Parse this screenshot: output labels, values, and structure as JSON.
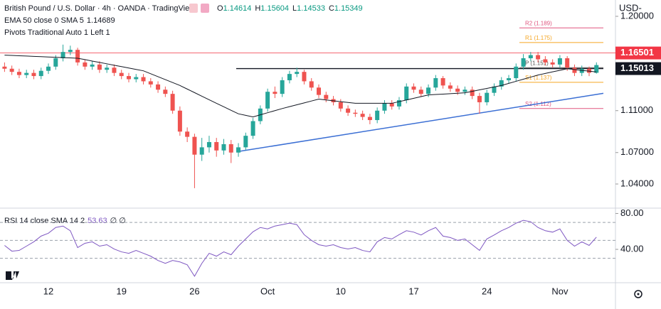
{
  "chart_data": {
    "type": "candlestick",
    "title": "British Pound / U.S. Dollar · 4h · OANDA · TradingView",
    "ohlc_prefixes": [
      "O",
      "H",
      "L",
      "C"
    ],
    "currency": "USD-",
    "categories": [
      null,
      null,
      null,
      null,
      null,
      null,
      "12",
      null,
      null,
      null,
      null,
      null,
      null,
      null,
      null,
      null,
      "19",
      null,
      null,
      null,
      null,
      null,
      null,
      null,
      null,
      null,
      "26",
      null,
      null,
      null,
      null,
      null,
      null,
      null,
      null,
      null,
      "Oct",
      null,
      null,
      null,
      null,
      null,
      null,
      null,
      null,
      null,
      "10",
      null,
      null,
      null,
      null,
      null,
      null,
      null,
      null,
      null,
      "17",
      null,
      null,
      null,
      null,
      null,
      null,
      null,
      null,
      null,
      "24",
      null,
      null,
      null,
      null,
      null,
      null,
      null,
      null,
      null,
      "Nov",
      null,
      null,
      null,
      null,
      null
    ],
    "candles": {
      "up_color": "#26a69a",
      "down_color": "#ef5350",
      "open": [
        1.152,
        1.15,
        1.147,
        1.144,
        1.146,
        1.143,
        1.148,
        1.152,
        1.16,
        1.166,
        1.168,
        1.156,
        1.152,
        1.154,
        1.149,
        1.151,
        1.146,
        1.143,
        1.14,
        1.142,
        1.138,
        1.135,
        1.13,
        1.126,
        1.11,
        1.09,
        1.085,
        1.068,
        1.075,
        1.08,
        1.072,
        1.078,
        1.07,
        1.075,
        1.086,
        1.1,
        1.112,
        1.128,
        1.126,
        1.139,
        1.145,
        1.147,
        1.138,
        1.132,
        1.125,
        1.121,
        1.118,
        1.112,
        1.108,
        1.107,
        1.104,
        1.101,
        1.11,
        1.117,
        1.114,
        1.12,
        1.133,
        1.13,
        1.126,
        1.132,
        1.141,
        1.134,
        1.131,
        1.128,
        1.13,
        1.124,
        1.118,
        1.127,
        1.133,
        1.139,
        1.141,
        1.152,
        1.16,
        1.163,
        1.159,
        1.156,
        1.154,
        1.16,
        1.151,
        1.146,
        1.15,
        1.14614
      ],
      "high": [
        1.156,
        1.153,
        1.15,
        1.149,
        1.149,
        1.151,
        1.155,
        1.163,
        1.173,
        1.172,
        1.17,
        1.159,
        1.157,
        1.157,
        1.154,
        1.154,
        1.149,
        1.146,
        1.145,
        1.145,
        1.141,
        1.138,
        1.133,
        1.129,
        1.114,
        1.094,
        1.088,
        1.084,
        1.086,
        1.084,
        1.083,
        1.082,
        1.079,
        1.089,
        1.103,
        1.115,
        1.131,
        1.133,
        1.142,
        1.148,
        1.151,
        1.149,
        1.141,
        1.135,
        1.128,
        1.124,
        1.121,
        1.115,
        1.111,
        1.11,
        1.107,
        1.113,
        1.12,
        1.12,
        1.123,
        1.136,
        1.136,
        1.133,
        1.135,
        1.144,
        1.143,
        1.137,
        1.134,
        1.133,
        1.133,
        1.127,
        1.13,
        1.136,
        1.142,
        1.144,
        1.155,
        1.164,
        1.166,
        1.166,
        1.162,
        1.159,
        1.163,
        1.162,
        1.154,
        1.153,
        1.152,
        1.15604
      ],
      "low": [
        1.147,
        1.144,
        1.141,
        1.141,
        1.14,
        1.14,
        1.145,
        1.149,
        1.157,
        1.163,
        1.153,
        1.149,
        1.149,
        1.146,
        1.146,
        1.143,
        1.14,
        1.137,
        1.137,
        1.135,
        1.132,
        1.127,
        1.123,
        1.107,
        1.086,
        1.08,
        1.036,
        1.062,
        1.07,
        1.066,
        1.068,
        1.06,
        1.066,
        1.072,
        1.083,
        1.097,
        1.109,
        1.122,
        1.123,
        1.136,
        1.142,
        1.135,
        1.129,
        1.122,
        1.118,
        1.115,
        1.109,
        1.105,
        1.104,
        1.101,
        1.097,
        1.098,
        1.107,
        1.111,
        1.111,
        1.117,
        1.127,
        1.123,
        1.123,
        1.129,
        1.131,
        1.128,
        1.125,
        1.125,
        1.121,
        1.107,
        1.115,
        1.124,
        1.13,
        1.136,
        1.138,
        1.149,
        1.157,
        1.156,
        1.153,
        1.151,
        1.151,
        1.148,
        1.143,
        1.143,
        1.143,
        1.14533
      ],
      "close": [
        1.15,
        1.147,
        1.144,
        1.146,
        1.143,
        1.148,
        1.152,
        1.16,
        1.166,
        1.168,
        1.156,
        1.152,
        1.154,
        1.149,
        1.151,
        1.146,
        1.143,
        1.14,
        1.142,
        1.138,
        1.135,
        1.13,
        1.126,
        1.11,
        1.09,
        1.085,
        1.068,
        1.075,
        1.08,
        1.072,
        1.078,
        1.07,
        1.075,
        1.086,
        1.1,
        1.112,
        1.128,
        1.126,
        1.139,
        1.145,
        1.147,
        1.138,
        1.132,
        1.125,
        1.121,
        1.118,
        1.112,
        1.108,
        1.107,
        1.104,
        1.101,
        1.11,
        1.117,
        1.114,
        1.12,
        1.133,
        1.13,
        1.126,
        1.132,
        1.141,
        1.134,
        1.131,
        1.128,
        1.13,
        1.124,
        1.118,
        1.127,
        1.133,
        1.139,
        1.141,
        1.152,
        1.16,
        1.163,
        1.159,
        1.156,
        1.154,
        1.16,
        1.151,
        1.146,
        1.15,
        1.14614,
        1.15349
      ]
    },
    "ema": {
      "name": "EMA 50 close 0 SMA 5",
      "color": "#131722",
      "values": [
        1.163,
        1.1627,
        1.1624,
        1.1621,
        1.1618,
        1.1615,
        1.1612,
        1.1609,
        1.1606,
        1.1603,
        1.16,
        1.1587,
        1.1573,
        1.156,
        1.1547,
        1.1533,
        1.152,
        1.1507,
        1.1493,
        1.148,
        1.1452,
        1.1424,
        1.1396,
        1.1368,
        1.134,
        1.1306,
        1.1272,
        1.1238,
        1.1204,
        1.117,
        1.1137,
        1.1103,
        1.107,
        1.1055,
        1.104,
        1.106,
        1.108,
        1.11,
        1.112,
        1.1138,
        1.1156,
        1.1174,
        1.1192,
        1.121,
        1.1202,
        1.1194,
        1.1186,
        1.1178,
        1.117,
        1.117,
        1.117,
        1.117,
        1.117,
        1.117,
        1.1186,
        1.1202,
        1.1218,
        1.1234,
        1.125,
        1.1254,
        1.1258,
        1.1262,
        1.1266,
        1.127,
        1.1284,
        1.1298,
        1.1312,
        1.1326,
        1.134,
        1.136,
        1.138,
        1.14,
        1.142,
        1.144,
        1.1455,
        1.147,
        1.1485,
        1.15,
        1.1492,
        1.1484,
        1.1477,
        1.14689
      ]
    },
    "pivots_title": "Pivots Traditional Auto 1 Left 1",
    "pivots": [
      {
        "label": "R2 (1.189)",
        "value": 1.189,
        "color": "#e0557f"
      },
      {
        "label": "R1 (1.175)",
        "value": 1.175,
        "color": "#f5a623"
      },
      {
        "label": "P (1.151)",
        "value": 1.151,
        "color": "#555555"
      },
      {
        "label": "S1 (1.137)",
        "value": 1.137,
        "color": "#f5a623"
      },
      {
        "label": "S2 (1.112)",
        "value": 1.112,
        "color": "#e0557f"
      }
    ],
    "levels": [
      {
        "value": 1.16501,
        "color": "#f23645"
      },
      {
        "value": 1.15013,
        "color": "#131722"
      }
    ],
    "trendline": {
      "values": [
        1.071,
        1.1265
      ],
      "color": "#3b6fd4"
    },
    "ylim": [
      1.019,
      1.2088
    ],
    "yticks": [
      {
        "value": 1.04,
        "label": "1.04000"
      },
      {
        "value": 1.07,
        "label": "1.07000"
      },
      {
        "value": 1.11,
        "label": "1.11000"
      },
      {
        "value": 1.2,
        "label": "1.20000"
      }
    ],
    "rsi": {
      "name": "RSI 14 close SMA 14 2",
      "suffix": "∅ ∅",
      "color": "#7e57c2",
      "values": [
        44.4,
        38,
        38.8,
        43.6,
        48.4,
        54.8,
        58,
        64.4,
        66,
        60.8,
        42,
        46.8,
        48.4,
        43.6,
        45.2,
        40.4,
        37.2,
        35.6,
        38.8,
        35.6,
        32.4,
        27.6,
        24.4,
        27.6,
        26,
        22.8,
        10,
        24.4,
        35.6,
        32.4,
        37.2,
        34,
        43.6,
        51.6,
        59.6,
        64.4,
        62.8,
        66,
        67.6,
        69.2,
        67.6,
        56.4,
        50,
        45.2,
        43.6,
        45.2,
        42,
        40.4,
        42,
        38.8,
        37.2,
        48.4,
        53.2,
        51.6,
        56.4,
        60.8,
        59.2,
        56,
        60.8,
        64.4,
        54.8,
        53.2,
        50,
        51.6,
        45.2,
        38.8,
        51.6,
        56,
        60.8,
        64.4,
        69.2,
        72.4,
        70.8,
        64.4,
        60.8,
        59.2,
        62.8,
        50,
        43.6,
        48.4,
        44.4,
        53.63
      ],
      "bands": [
        70,
        50,
        30
      ],
      "ylim": [
        2.8,
        83.6
      ],
      "yticks": [
        {
          "value": 80,
          "label": "80.00"
        },
        {
          "value": 40,
          "label": "40.00"
        }
      ]
    }
  }
}
